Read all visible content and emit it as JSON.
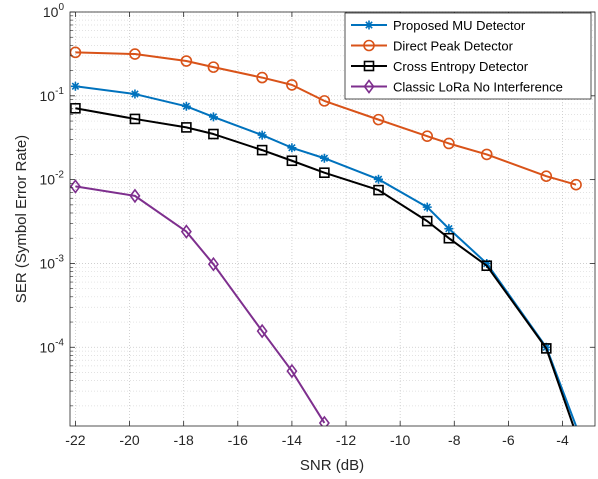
{
  "chart_data": {
    "type": "line",
    "xlabel": "SNR (dB)",
    "ylabel": "SER (Symbol Error Rate)",
    "xlim": [
      -22.2,
      -2.8
    ],
    "ylim": [
      1.15e-05,
      1
    ],
    "yscale": "log",
    "grid": true,
    "minor_grid": true,
    "legend_position": "top-right",
    "x_ticks": [
      {
        "value": -22,
        "label": "-22"
      },
      {
        "value": -20,
        "label": "-20"
      },
      {
        "value": -18,
        "label": "-18"
      },
      {
        "value": -16,
        "label": "-16"
      },
      {
        "value": -14,
        "label": "-14"
      },
      {
        "value": -12,
        "label": "-12"
      },
      {
        "value": -10,
        "label": "-10"
      },
      {
        "value": -8,
        "label": "-8"
      },
      {
        "value": -6,
        "label": "-6"
      },
      {
        "value": -4,
        "label": "-4"
      }
    ],
    "y_ticks": [
      {
        "value": 1,
        "base": "10",
        "exp": "0"
      },
      {
        "value": 0.1,
        "base": "10",
        "exp": "-1"
      },
      {
        "value": 0.01,
        "base": "10",
        "exp": "-2"
      },
      {
        "value": 0.001,
        "base": "10",
        "exp": "-3"
      },
      {
        "value": 0.0001,
        "base": "10",
        "exp": "-4"
      }
    ],
    "series": [
      {
        "name": "Proposed MU Detector",
        "color": "#0072BD",
        "marker": "asterisk",
        "x": [
          -22,
          -19.8,
          -17.9,
          -16.9,
          -15.1,
          -14,
          -12.8,
          -10.8,
          -9,
          -8.2,
          -6.8,
          -4.6,
          -3.5
        ],
        "y": [
          0.13,
          0.105,
          0.075,
          0.056,
          0.034,
          0.024,
          0.018,
          0.0101,
          0.0047,
          0.0026,
          0.001,
          0.0001,
          1.15e-05
        ]
      },
      {
        "name": "Direct Peak Detector",
        "color": "#D95319",
        "marker": "circle",
        "x": [
          -22,
          -19.8,
          -17.9,
          -16.9,
          -15.1,
          -14,
          -12.8,
          -10.8,
          -9,
          -8.2,
          -6.8,
          -4.6,
          -3.5
        ],
        "y": [
          0.33,
          0.315,
          0.26,
          0.22,
          0.165,
          0.135,
          0.087,
          0.052,
          0.033,
          0.027,
          0.02,
          0.011,
          0.0087
        ]
      },
      {
        "name": "Cross Entropy Detector",
        "color": "#000000",
        "marker": "square",
        "x": [
          -22,
          -19.8,
          -17.9,
          -16.9,
          -15.1,
          -14,
          -12.8,
          -10.8,
          -9,
          -8.2,
          -6.8,
          -4.6,
          -3.6
        ],
        "y": [
          0.071,
          0.053,
          0.042,
          0.035,
          0.0225,
          0.0168,
          0.0121,
          0.0075,
          0.0032,
          0.002,
          0.00094,
          9.7e-05,
          1.15e-05
        ]
      },
      {
        "name": "Classic LoRa No Interference",
        "color": "#7E2F8E",
        "marker": "diamond",
        "x": [
          -22,
          -19.8,
          -17.9,
          -16.9,
          -15.1,
          -14,
          -12.8
        ],
        "y": [
          0.0083,
          0.0064,
          0.0024,
          0.00098,
          0.000156,
          5.2e-05,
          1.25e-05
        ]
      }
    ]
  }
}
